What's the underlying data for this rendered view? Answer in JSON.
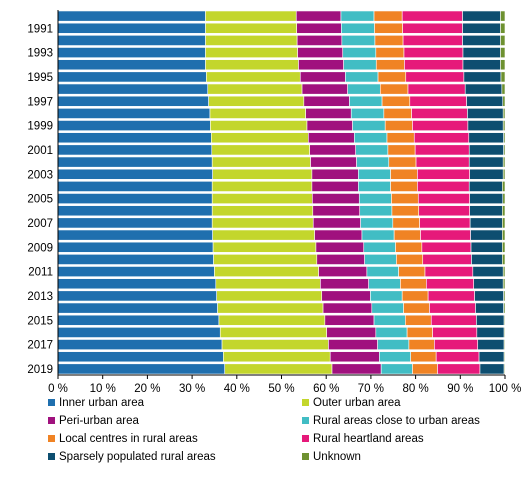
{
  "chart_data": {
    "type": "bar",
    "orientation": "horizontal",
    "stacked": true,
    "percent_scale": true,
    "title": "",
    "xlabel": "",
    "ylabel": "",
    "xlim": [
      0,
      100
    ],
    "x_ticks": [
      "0 %",
      "10 %",
      "20 %",
      "30 %",
      "40 %",
      "50 %",
      "60 %",
      "70 %",
      "80 %",
      "90 %",
      "100 %"
    ],
    "categories": [
      "1990",
      "1991",
      "1992",
      "1993",
      "1994",
      "1995",
      "1996",
      "1997",
      "1998",
      "1999",
      "2000",
      "2001",
      "2002",
      "2003",
      "2004",
      "2005",
      "2006",
      "2007",
      "2008",
      "2009",
      "2010",
      "2011",
      "2012",
      "2013",
      "2014",
      "2015",
      "2016",
      "2017",
      "2018",
      "2019"
    ],
    "category_labels_shown": [
      "1991",
      "1993",
      "1995",
      "1997",
      "1999",
      "2001",
      "2003",
      "2005",
      "2007",
      "2009",
      "2011",
      "2013",
      "2015",
      "2017",
      "2019"
    ],
    "legend_position": "bottom",
    "grid": false,
    "series": [
      {
        "name": "Inner urban area",
        "color": "#1f6fae",
        "values": [
          33.0,
          33.0,
          33.0,
          33.0,
          33.0,
          33.2,
          33.5,
          33.7,
          34.0,
          34.1,
          34.3,
          34.4,
          34.5,
          34.6,
          34.5,
          34.5,
          34.5,
          34.5,
          34.6,
          34.7,
          34.8,
          35.0,
          35.3,
          35.5,
          35.7,
          36.0,
          36.3,
          36.7,
          37.0,
          37.3
        ]
      },
      {
        "name": "Outer urban area",
        "color": "#c3d62c",
        "values": [
          20.3,
          20.4,
          20.5,
          20.6,
          20.8,
          21.0,
          21.1,
          21.3,
          21.4,
          21.6,
          21.7,
          21.9,
          22.0,
          22.2,
          22.3,
          22.4,
          22.5,
          22.6,
          22.8,
          23.0,
          23.1,
          23.3,
          23.4,
          23.5,
          23.6,
          23.7,
          23.8,
          23.8,
          23.9,
          24.0
        ]
      },
      {
        "name": "Peri-urban area",
        "color": "#a0117e",
        "values": [
          10.0,
          10.0,
          10.0,
          10.1,
          10.1,
          10.1,
          10.2,
          10.2,
          10.2,
          10.2,
          10.3,
          10.3,
          10.3,
          10.4,
          10.4,
          10.5,
          10.5,
          10.6,
          10.6,
          10.7,
          10.7,
          10.8,
          10.8,
          10.9,
          10.9,
          11.0,
          11.0,
          11.0,
          11.0,
          11.0
        ]
      },
      {
        "name": "Rural areas close to urban areas",
        "color": "#41bdc4",
        "values": [
          7.4,
          7.4,
          7.4,
          7.4,
          7.3,
          7.3,
          7.3,
          7.3,
          7.3,
          7.3,
          7.3,
          7.2,
          7.2,
          7.2,
          7.2,
          7.2,
          7.2,
          7.2,
          7.2,
          7.1,
          7.1,
          7.1,
          7.1,
          7.1,
          7.1,
          7.0,
          7.0,
          7.0,
          7.0,
          7.0
        ]
      },
      {
        "name": "Local centres in rural areas",
        "color": "#f08324",
        "values": [
          6.3,
          6.3,
          6.3,
          6.3,
          6.3,
          6.2,
          6.2,
          6.2,
          6.2,
          6.1,
          6.1,
          6.1,
          6.1,
          6.0,
          6.0,
          6.0,
          6.0,
          6.0,
          5.9,
          5.9,
          5.9,
          5.9,
          5.8,
          5.8,
          5.8,
          5.8,
          5.7,
          5.7,
          5.7,
          5.6
        ]
      },
      {
        "name": "Rural heartland areas",
        "color": "#e6197a",
        "values": [
          13.5,
          13.4,
          13.3,
          13.2,
          13.1,
          13.0,
          12.8,
          12.7,
          12.5,
          12.4,
          12.2,
          12.1,
          11.9,
          11.7,
          11.6,
          11.5,
          11.4,
          11.3,
          11.2,
          11.0,
          10.9,
          10.7,
          10.6,
          10.4,
          10.3,
          10.1,
          9.9,
          9.7,
          9.6,
          9.5
        ]
      },
      {
        "name": "Sparsely populated rural areas",
        "color": "#0d4e70",
        "values": [
          8.5,
          8.5,
          8.5,
          8.4,
          8.4,
          8.3,
          8.2,
          8.1,
          8.0,
          7.9,
          7.8,
          7.7,
          7.6,
          7.5,
          7.4,
          7.4,
          7.3,
          7.2,
          7.1,
          7.0,
          6.9,
          6.8,
          6.6,
          6.5,
          6.3,
          6.2,
          6.1,
          5.9,
          5.6,
          5.4
        ]
      },
      {
        "name": "Unknown",
        "color": "#6e9130",
        "values": [
          1.0,
          1.0,
          1.0,
          1.0,
          1.0,
          0.9,
          0.7,
          0.5,
          0.4,
          0.4,
          0.3,
          0.3,
          0.4,
          0.4,
          0.6,
          0.5,
          0.6,
          0.6,
          0.6,
          0.6,
          0.6,
          0.4,
          0.4,
          0.3,
          0.3,
          0.2,
          0.2,
          0.2,
          0.2,
          0.2
        ]
      }
    ]
  }
}
